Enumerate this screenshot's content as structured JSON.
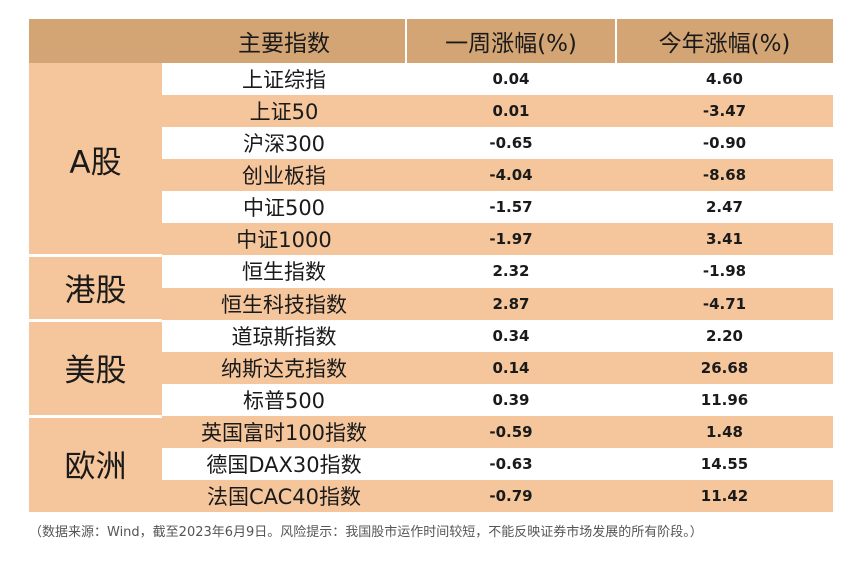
{
  "header": {
    "name": "主要指数",
    "week": "一周涨幅(%)",
    "ytd": "今年涨幅(%)"
  },
  "groups": [
    {
      "label": "A股",
      "rows": [
        {
          "name": "上证综指",
          "week": "0.04",
          "ytd": "4.60"
        },
        {
          "name": "上证50",
          "week": "0.01",
          "ytd": "-3.47"
        },
        {
          "name": "沪深300",
          "week": "-0.65",
          "ytd": "-0.90"
        },
        {
          "name": "创业板指",
          "week": "-4.04",
          "ytd": "-8.68"
        },
        {
          "name": "中证500",
          "week": "-1.57",
          "ytd": "2.47"
        },
        {
          "name": "中证1000",
          "week": "-1.97",
          "ytd": "3.41"
        }
      ]
    },
    {
      "label": "港股",
      "rows": [
        {
          "name": "恒生指数",
          "week": "2.32",
          "ytd": "-1.98"
        },
        {
          "name": "恒生科技指数",
          "week": "2.87",
          "ytd": "-4.71"
        }
      ]
    },
    {
      "label": "美股",
      "rows": [
        {
          "name": "道琼斯指数",
          "week": "0.34",
          "ytd": "2.20"
        },
        {
          "name": "纳斯达克指数",
          "week": "0.14",
          "ytd": "26.68"
        },
        {
          "name": "标普500",
          "week": "0.39",
          "ytd": "11.96"
        }
      ]
    },
    {
      "label": "欧洲",
      "rows": [
        {
          "name": "英国富时100指数",
          "week": "-0.59",
          "ytd": "1.48"
        },
        {
          "name": "德国DAX30指数",
          "week": "-0.63",
          "ytd": "14.55"
        },
        {
          "name": "法国CAC40指数",
          "week": "-0.79",
          "ytd": "11.42"
        }
      ]
    }
  ],
  "note": "（数据来源：Wind，截至2023年6月9日。风险提示：我国股市运作时间较短，不能反映证券市场发展的所有阶段。）",
  "colors": {
    "header_bg": "#d4a574",
    "band_bg": "#f5c69c",
    "white": "#ffffff"
  }
}
